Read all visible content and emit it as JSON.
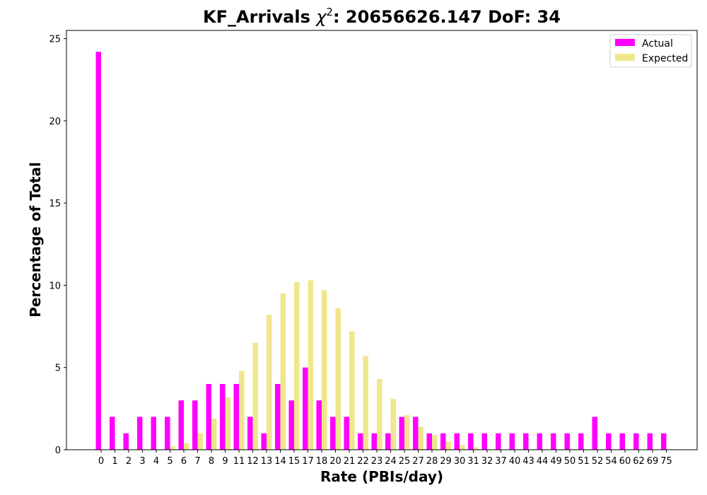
{
  "chart_data": {
    "type": "bar",
    "title_prefix": "KF_Arrivals ",
    "title_chi": "χ",
    "title_sup": "2",
    "title_suffix": ": 20656626.147 DoF: 34",
    "xlabel": "Rate (PBIs/day)",
    "ylabel": "Percentage of Total",
    "ylim": [
      0,
      25.5
    ],
    "yticks": [
      0,
      5,
      10,
      15,
      20,
      25
    ],
    "categories": [
      "0",
      "1",
      "2",
      "3",
      "4",
      "5",
      "6",
      "7",
      "8",
      "9",
      "11",
      "12",
      "13",
      "14",
      "15",
      "17",
      "18",
      "20",
      "21",
      "22",
      "23",
      "24",
      "25",
      "27",
      "28",
      "29",
      "30",
      "31",
      "32",
      "37",
      "40",
      "43",
      "44",
      "49",
      "50",
      "51",
      "52",
      "54",
      "60",
      "62",
      "69",
      "75"
    ],
    "series": [
      {
        "name": "Actual",
        "color": "#ff00ff",
        "values": [
          24.2,
          2,
          1,
          2,
          2,
          2,
          3,
          3,
          4,
          4,
          4,
          2,
          1,
          4,
          3,
          5,
          3,
          2,
          2,
          1,
          1,
          1,
          2,
          2,
          1,
          1,
          1,
          1,
          1,
          1,
          1,
          1,
          1,
          1,
          1,
          1,
          2,
          1,
          1,
          1,
          1,
          1
        ]
      },
      {
        "name": "Expected",
        "color": "#f0e68c",
        "values": [
          0,
          0,
          0,
          0,
          0,
          0.2,
          0.4,
          1.0,
          1.9,
          3.2,
          4.8,
          6.5,
          8.2,
          9.5,
          10.2,
          10.3,
          9.7,
          8.6,
          7.2,
          5.7,
          4.3,
          3.1,
          2.1,
          1.4,
          0.9,
          0.5,
          0.3,
          0.15,
          0,
          0,
          0,
          0,
          0,
          0,
          0,
          0,
          0,
          0,
          0,
          0,
          0,
          0
        ]
      }
    ],
    "legend_position": "top-right",
    "grid": false
  }
}
